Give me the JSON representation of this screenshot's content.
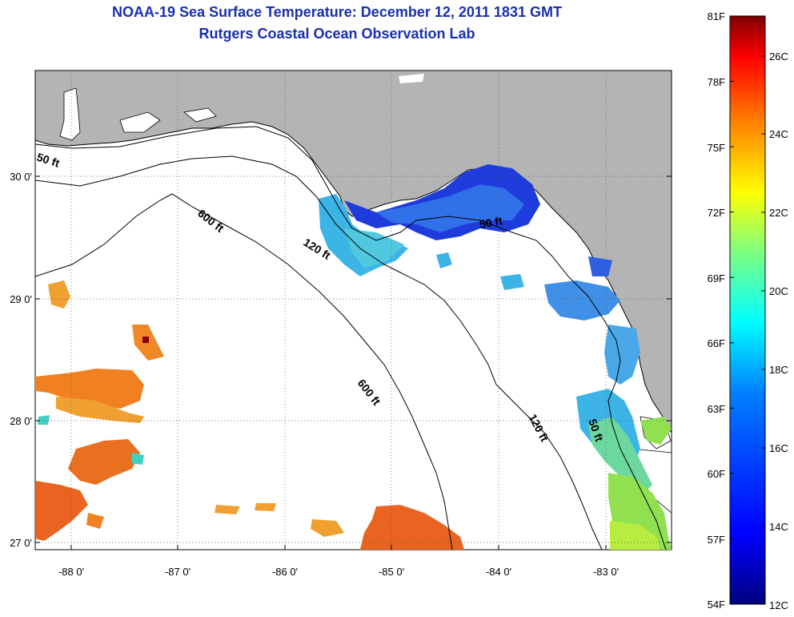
{
  "title": "NOAA-19 Sea Surface Temperature:  December 12, 2011 1831 GMT",
  "subtitle": "Rutgers Coastal Ocean Observation Lab",
  "axes": {
    "lon_ticks": [
      "-88 0'",
      "-87 0'",
      "-86 0'",
      "-85 0'",
      "-84 0'",
      "-83 0'"
    ],
    "lat_ticks": [
      "30 0'",
      "29 0'",
      "28 0'",
      "27 0'"
    ]
  },
  "contours": {
    "c50_a": "50 ft",
    "c50_b": "50 ft",
    "c50_c": "50 ft",
    "c120_a": "120 ft",
    "c120_b": "120 ft",
    "c600_a": "600 ft",
    "c600_b": "600 ft"
  },
  "colorbar": {
    "f_labels": [
      "81F",
      "78F",
      "75F",
      "72F",
      "69F",
      "66F",
      "63F",
      "60F",
      "57F",
      "54F"
    ],
    "c_labels": [
      "26C",
      "24C",
      "22C",
      "20C",
      "18C",
      "16C",
      "14C",
      "12C"
    ],
    "colors": [
      "#000080",
      "#0000ff",
      "#0080ff",
      "#00ffff",
      "#80ff80",
      "#ffff00",
      "#ff8000",
      "#ff0000",
      "#800000"
    ]
  },
  "map_colors": {
    "land": "#b4b4b4",
    "ocean_nodata": "#ffffff",
    "sst_cold": "#1e3cdc",
    "sst_cool": "#3cb4e6",
    "sst_mid": "#90e050",
    "sst_warm": "#f08020"
  }
}
